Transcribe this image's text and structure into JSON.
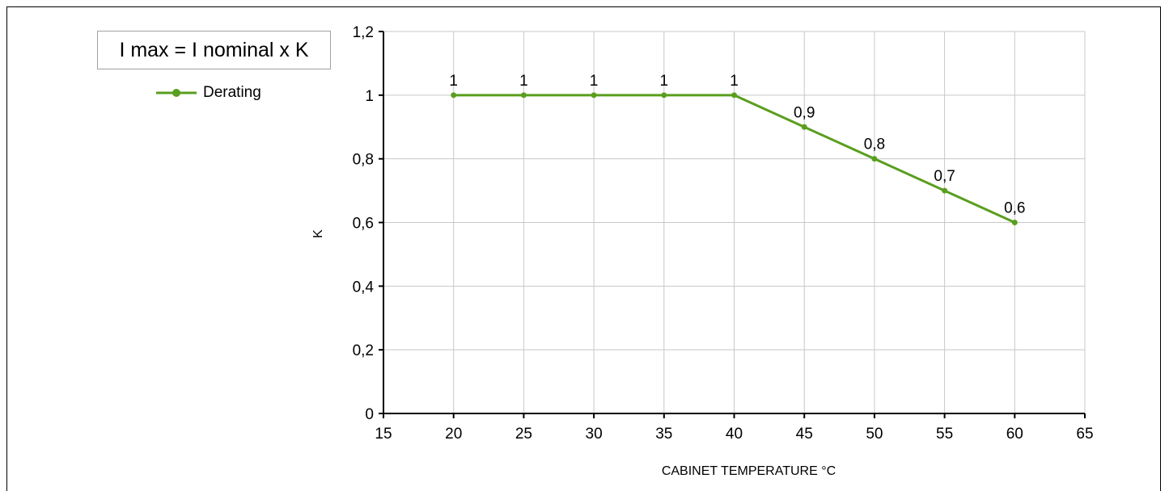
{
  "formula": "I max = I nominal x K",
  "chart_data": {
    "type": "line",
    "title": "",
    "xlabel": "CABINET TEMPERATURE °C",
    "ylabel": "K",
    "xlim": [
      15,
      65
    ],
    "ylim": [
      0,
      1.2
    ],
    "x_ticks": [
      15,
      20,
      25,
      30,
      35,
      40,
      45,
      50,
      55,
      60,
      65
    ],
    "x_tick_labels": [
      "15",
      "20",
      "25",
      "30",
      "35",
      "40",
      "45",
      "50",
      "55",
      "60",
      "65"
    ],
    "y_ticks": [
      0,
      0.2,
      0.4,
      0.6,
      0.8,
      1,
      1.2
    ],
    "y_tick_labels": [
      "0",
      "0,2",
      "0,4",
      "0,6",
      "0,8",
      "1",
      "1,2"
    ],
    "grid": true,
    "legend": "top-left",
    "series": [
      {
        "name": "Derating",
        "color": "#5a9e1e",
        "x": [
          20,
          25,
          30,
          35,
          40,
          45,
          50,
          55,
          60
        ],
        "values": [
          1,
          1,
          1,
          1,
          1,
          0.9,
          0.8,
          0.7,
          0.6
        ],
        "data_labels": [
          "1",
          "1",
          "1",
          "1",
          "1",
          "0,9",
          "0,8",
          "0,7",
          "0,6"
        ]
      }
    ]
  }
}
